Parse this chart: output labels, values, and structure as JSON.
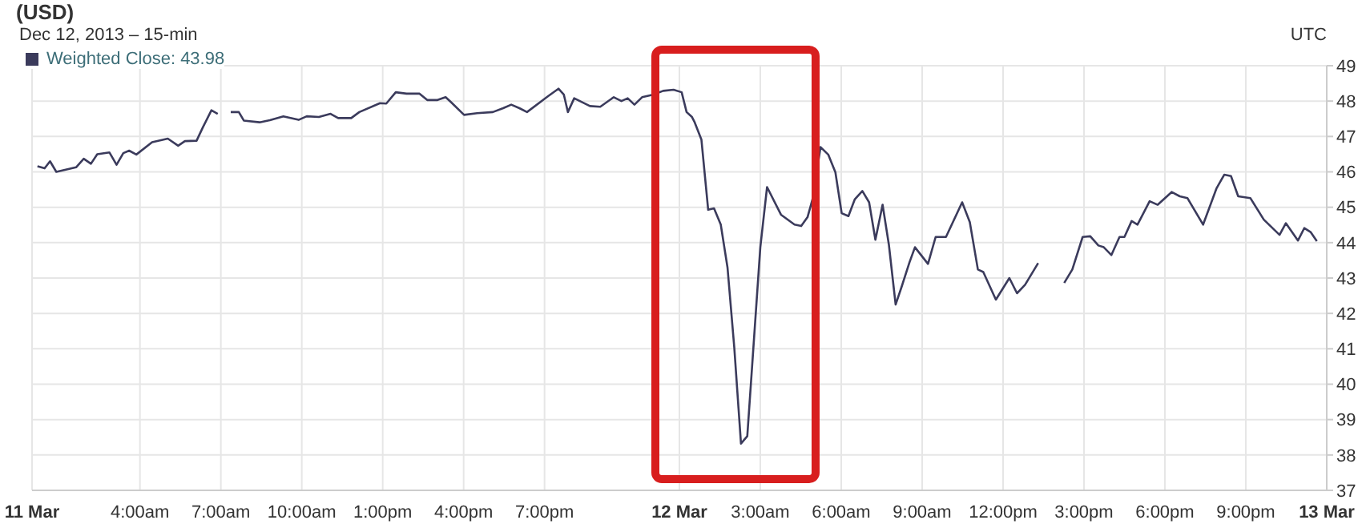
{
  "chart_data": {
    "type": "line",
    "title": "(USD)",
    "subtitle": "Dec 12, 2013 – 15-min",
    "annotations": [
      "UTC"
    ],
    "x": [
      "2013-03-11T00:12",
      "2013-03-11T00:28",
      "2013-03-11T00:40",
      "2013-03-11T00:54",
      "2013-03-11T01:38",
      "2013-03-11T01:55",
      "2013-03-11T02:11",
      "2013-03-11T02:25",
      "2013-03-11T02:52",
      "2013-03-11T03:08",
      "2013-03-11T03:23",
      "2013-03-11T03:36",
      "2013-03-11T03:52",
      "2013-03-11T04:27",
      "2013-03-11T05:02",
      "2013-03-11T05:25",
      "2013-03-11T05:40",
      "2013-03-11T06:06",
      "2013-03-11T06:20",
      "2013-03-11T06:39",
      "2013-03-11T06:53",
      "2013-03-11T07:06",
      "2013-03-11T07:22",
      "2013-03-11T07:40",
      "2013-03-11T07:51",
      "2013-03-11T08:26",
      "2013-03-11T08:49",
      "2013-03-11T09:19",
      "2013-03-11T09:53",
      "2013-03-11T10:11",
      "2013-03-11T10:38",
      "2013-03-11T11:04",
      "2013-03-11T11:21",
      "2013-03-11T11:50",
      "2013-03-11T12:08",
      "2013-03-11T12:54",
      "2013-03-11T13:08",
      "2013-03-11T13:29",
      "2013-03-11T13:53",
      "2013-03-11T14:22",
      "2013-03-11T14:39",
      "2013-03-11T15:02",
      "2013-03-11T15:20",
      "2013-03-11T15:32",
      "2013-03-11T16:01",
      "2013-03-11T16:30",
      "2013-03-11T17:05",
      "2013-03-11T17:28",
      "2013-03-11T17:46",
      "2013-03-11T18:04",
      "2013-03-11T18:21",
      "2013-03-11T19:08",
      "2013-03-11T19:31",
      "2013-03-11T19:43",
      "2013-03-11T19:52",
      "2013-03-11T20:06",
      "2013-03-11T20:41",
      "2013-03-11T21:04",
      "2013-03-11T21:34",
      "2013-03-11T21:51",
      "2013-03-11T22:05",
      "2013-03-11T22:20",
      "2013-03-11T22:37",
      "2013-03-11T23:01",
      "2013-03-11T23:24",
      "2013-03-11T23:47",
      "2013-03-12T00:05",
      "2013-03-12T00:16",
      "2013-03-12T00:28",
      "2013-03-12T00:34",
      "2013-03-12T00:49",
      "2013-03-12T01:04",
      "2013-03-12T01:17",
      "2013-03-12T01:32",
      "2013-03-12T01:47",
      "2013-03-12T02:02",
      "2013-03-12T02:17",
      "2013-03-12T02:31",
      "2013-03-12T03:00",
      "2013-03-12T03:15",
      "2013-03-12T03:46",
      "2013-03-12T04:16",
      "2013-03-12T04:31",
      "2013-03-12T04:45",
      "2013-03-12T04:56",
      "2013-03-12T05:14",
      "2013-03-12T05:31",
      "2013-03-12T05:47",
      "2013-03-12T06:01",
      "2013-03-12T06:16",
      "2013-03-12T06:30",
      "2013-03-12T06:47",
      "2013-03-12T07:02",
      "2013-03-12T07:16",
      "2013-03-12T07:32",
      "2013-03-12T07:46",
      "2013-03-12T08:01",
      "2013-03-12T08:14",
      "2013-03-12T08:32",
      "2013-03-12T08:44",
      "2013-03-12T09:13",
      "2013-03-12T09:30",
      "2013-03-12T09:53",
      "2013-03-12T10:29",
      "2013-03-12T10:46",
      "2013-03-12T11:04",
      "2013-03-12T11:16",
      "2013-03-12T11:44",
      "2013-03-12T12:14",
      "2013-03-12T12:31",
      "2013-03-12T12:49",
      "2013-03-12T13:18",
      "2013-03-12T13:48",
      "2013-03-12T14:16",
      "2013-03-12T14:34",
      "2013-03-12T14:57",
      "2013-03-12T15:14",
      "2013-03-12T15:32",
      "2013-03-12T15:44",
      "2013-03-12T16:01",
      "2013-03-12T16:19",
      "2013-03-12T16:30",
      "2013-03-12T16:46",
      "2013-03-12T16:59",
      "2013-03-12T17:26",
      "2013-03-12T17:44",
      "2013-03-12T18:15",
      "2013-03-12T18:33",
      "2013-03-12T18:50",
      "2013-03-12T19:25",
      "2013-03-12T19:55",
      "2013-03-12T20:12",
      "2013-03-12T20:27",
      "2013-03-12T20:43",
      "2013-03-12T21:10",
      "2013-03-12T21:40",
      "2013-03-12T22:15",
      "2013-03-12T22:29",
      "2013-03-12T22:56",
      "2013-03-12T23:10",
      "2013-03-12T23:24",
      "2013-03-12T23:38"
    ],
    "series": [
      {
        "name": "Weighted Close: 43.98",
        "color": "#3b3b5c",
        "values": [
          46.16,
          46.1,
          46.3,
          46.0,
          46.13,
          46.37,
          46.23,
          46.5,
          46.55,
          46.2,
          46.53,
          46.6,
          46.49,
          46.84,
          46.94,
          46.74,
          46.87,
          46.88,
          47.26,
          47.74,
          47.64,
          null,
          47.69,
          47.69,
          47.45,
          47.4,
          47.46,
          47.57,
          47.47,
          47.57,
          47.55,
          47.64,
          47.52,
          47.52,
          47.69,
          47.94,
          47.93,
          48.25,
          48.21,
          48.21,
          48.03,
          48.03,
          48.11,
          47.97,
          47.61,
          47.66,
          47.69,
          47.8,
          47.9,
          47.8,
          47.69,
          48.14,
          48.35,
          48.18,
          47.69,
          48.08,
          47.86,
          47.84,
          48.11,
          48.0,
          48.08,
          47.9,
          48.11,
          48.18,
          48.29,
          48.32,
          48.25,
          47.69,
          47.55,
          47.4,
          46.91,
          44.93,
          44.97,
          44.51,
          43.3,
          41.05,
          38.32,
          38.53,
          43.87,
          45.57,
          44.79,
          44.51,
          44.47,
          44.72,
          45.22,
          46.7,
          46.49,
          45.99,
          44.83,
          44.75,
          45.22,
          45.46,
          45.14,
          44.08,
          45.07,
          43.94,
          42.25,
          42.74,
          43.45,
          43.87,
          43.4,
          44.16,
          44.16,
          45.14,
          44.58,
          43.24,
          43.17,
          42.39,
          43.0,
          42.57,
          42.81,
          43.42,
          null,
          42.86,
          43.24,
          44.16,
          44.18,
          43.92,
          43.87,
          43.65,
          44.16,
          44.16,
          44.61,
          44.51,
          45.17,
          45.07,
          45.43,
          45.31,
          45.26,
          44.51,
          45.54,
          45.92,
          45.88,
          45.31,
          45.26,
          44.65,
          44.22,
          44.55,
          44.06,
          44.41,
          44.3,
          44.04
        ]
      }
    ],
    "xlim": [
      "2013-03-11T00:00",
      "2013-03-13T00:00"
    ],
    "xticks": [
      {
        "value": "2013-03-11T00:00",
        "label": "11 Mar"
      },
      {
        "value": "2013-03-11T04:00",
        "label": "4:00am"
      },
      {
        "value": "2013-03-11T07:00",
        "label": "7:00am"
      },
      {
        "value": "2013-03-11T10:00",
        "label": "10:00am"
      },
      {
        "value": "2013-03-11T13:00",
        "label": "1:00pm"
      },
      {
        "value": "2013-03-11T16:00",
        "label": "4:00pm"
      },
      {
        "value": "2013-03-11T19:00",
        "label": "7:00pm"
      },
      {
        "value": "2013-03-12T00:00",
        "label": "12 Mar"
      },
      {
        "value": "2013-03-12T03:00",
        "label": "3:00am"
      },
      {
        "value": "2013-03-12T06:00",
        "label": "6:00am"
      },
      {
        "value": "2013-03-12T09:00",
        "label": "9:00am"
      },
      {
        "value": "2013-03-12T12:00",
        "label": "12:00pm"
      },
      {
        "value": "2013-03-12T15:00",
        "label": "3:00pm"
      },
      {
        "value": "2013-03-12T18:00",
        "label": "6:00pm"
      },
      {
        "value": "2013-03-12T21:00",
        "label": "9:00pm"
      },
      {
        "value": "2013-03-13T00:00",
        "label": "13 Mar"
      }
    ],
    "ylim": [
      37,
      49
    ],
    "yticks": [
      37,
      38,
      39,
      40,
      41,
      42,
      43,
      44,
      45,
      46,
      47,
      48,
      49
    ],
    "grid": true,
    "legend": "top left",
    "marker": "none",
    "line_style": "solid"
  }
}
